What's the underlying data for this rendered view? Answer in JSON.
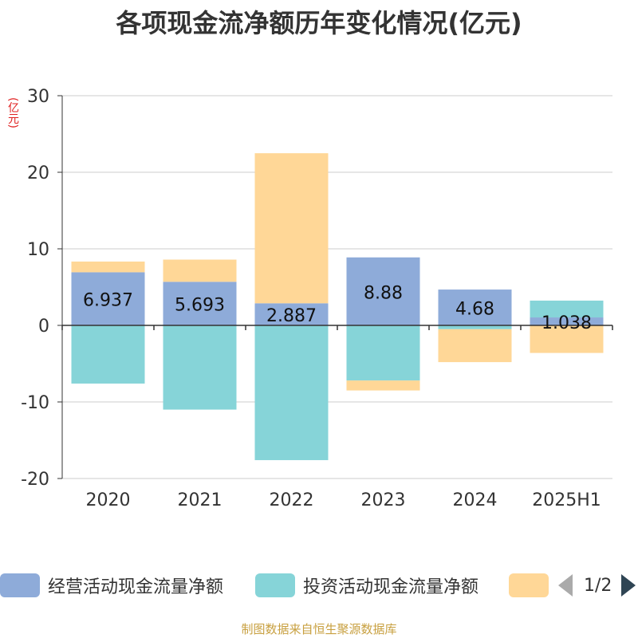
{
  "title": "各项现金流净额历年变化情况(亿元)",
  "footer": "制图数据来自恒生聚源数据库",
  "pager": {
    "text": "1/2"
  },
  "chart_data": {
    "type": "bar",
    "stacked": true,
    "title": "各项现金流净额历年变化情况(亿元)",
    "ylabel": "(亿元)",
    "ylim": [
      -20,
      30
    ],
    "yticks": [
      -20,
      -10,
      0,
      10,
      20,
      30
    ],
    "grid": true,
    "legend_position": "bottom",
    "categories": [
      "2020",
      "2021",
      "2022",
      "2023",
      "2024",
      "2025H1"
    ],
    "series": [
      {
        "name": "经营活动现金流量净额",
        "color": "#8eabd9",
        "values": [
          6.937,
          5.693,
          2.887,
          8.88,
          4.68,
          1.038
        ]
      },
      {
        "name": "投资活动现金流量净额",
        "color": "#86d4d8",
        "values": [
          -7.6,
          -11.0,
          -17.6,
          -7.2,
          -0.5,
          2.2
        ]
      },
      {
        "name": "",
        "color": "#ffd797",
        "values": [
          1.4,
          2.9,
          19.6,
          -1.3,
          -4.3,
          -3.6
        ]
      }
    ],
    "data_labels": [
      "6.937",
      "5.693",
      "2.887",
      "8.88",
      "4.68",
      "1.038"
    ]
  }
}
